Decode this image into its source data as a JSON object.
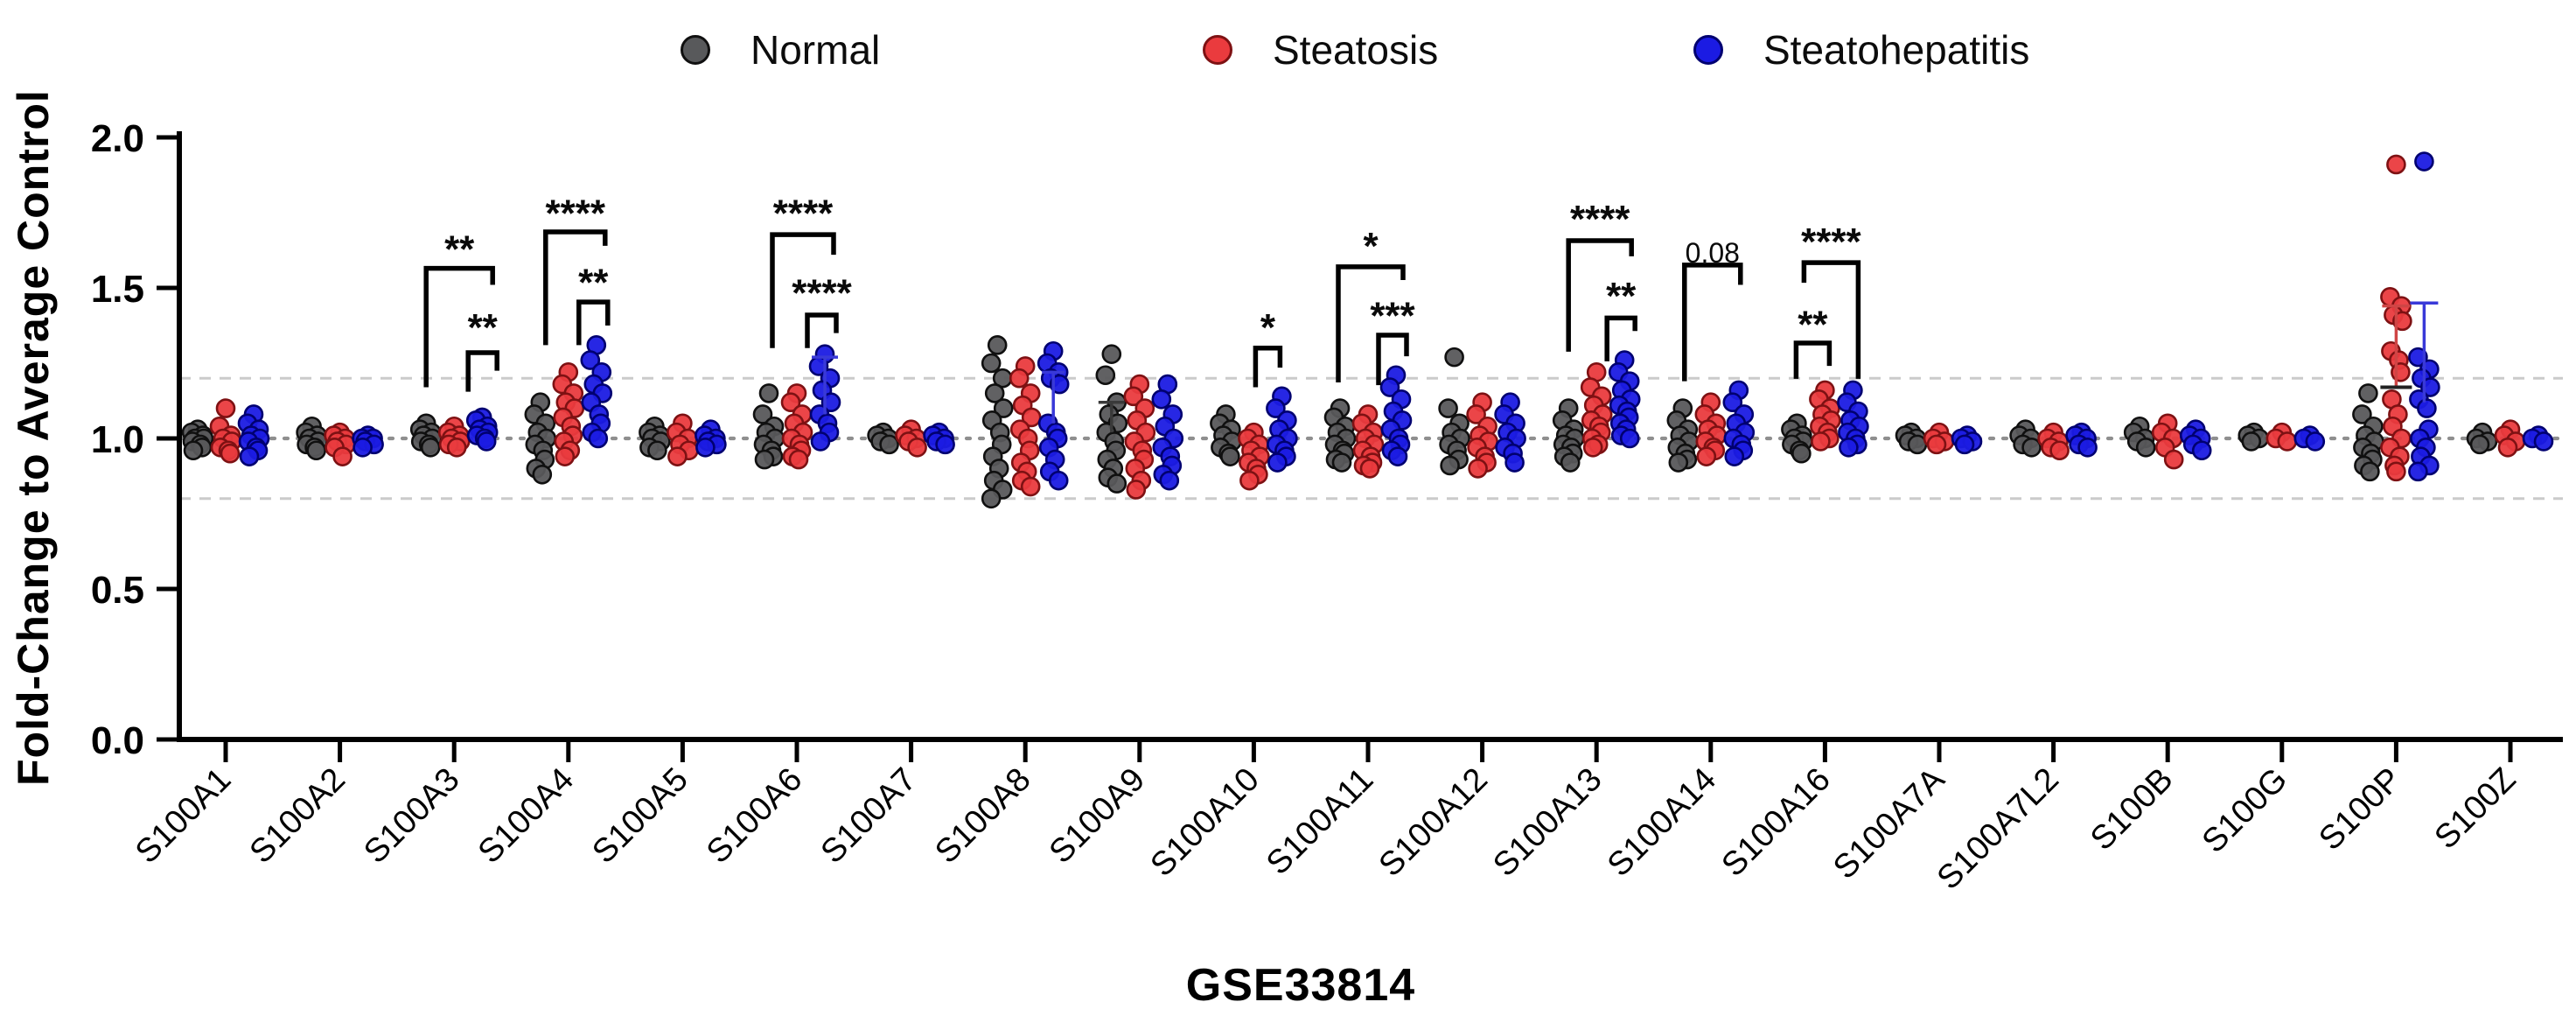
{
  "figure": {
    "kind": "scatter-dot-plot-figure",
    "background": "#ffffff"
  },
  "chart_data": {
    "type": "scatter",
    "title": "GSE33814",
    "xlabel": "GSE33814",
    "ylabel": "Fold-Change to Average Control",
    "ylim": [
      0.0,
      2.0
    ],
    "yticks": [
      "0.0",
      "0.5",
      "1.0",
      "1.5",
      "2.0"
    ],
    "legend_position": "top",
    "grid": "off",
    "reference_lines": [
      {
        "value": 1.2,
        "style": "dashed",
        "color": "#cbcbcb"
      },
      {
        "value": 1.0,
        "style": "dotted",
        "color": "#8f8f8f"
      },
      {
        "value": 0.8,
        "style": "dashed",
        "color": "#cbcbcb"
      }
    ],
    "categories": [
      "S100A1",
      "S100A2",
      "S100A3",
      "S100A4",
      "S100A5",
      "S100A6",
      "S100A7",
      "S100A8",
      "S100A9",
      "S100A10",
      "S100A11",
      "S100A12",
      "S100A13",
      "S100A14",
      "S100A16",
      "S100A7A",
      "S100A7L2",
      "S100B",
      "S100G",
      "S100P",
      "S100Z"
    ],
    "groups": [
      {
        "name": "Normal",
        "color": "#58595B",
        "edge_color": "#101010",
        "dx": -32,
        "values": [
          [
            1.03,
            1.02,
            1.01,
            1.0,
            1.0,
            0.99,
            0.98,
            0.97,
            0.96
          ],
          [
            1.04,
            1.02,
            1.01,
            1.0,
            0.99,
            0.98,
            0.97,
            0.96
          ],
          [
            1.05,
            1.03,
            1.02,
            1.01,
            1.0,
            0.99,
            0.98,
            0.97
          ],
          [
            1.12,
            1.08,
            1.05,
            1.02,
            1.0,
            0.98,
            0.96,
            0.93,
            0.9,
            0.88
          ],
          [
            1.04,
            1.02,
            1.01,
            1.0,
            0.99,
            0.97,
            0.96
          ],
          [
            1.15,
            1.08,
            1.04,
            1.02,
            1.0,
            0.98,
            0.96,
            0.94,
            0.93
          ],
          [
            1.02,
            1.01,
            1.0,
            0.99,
            0.98
          ],
          [
            1.31,
            1.25,
            1.2,
            1.15,
            1.1,
            1.06,
            1.02,
            0.98,
            0.94,
            0.9,
            0.86,
            0.83,
            0.8
          ],
          [
            1.28,
            1.21,
            1.12,
            1.08,
            1.05,
            1.02,
            0.99,
            0.96,
            0.93,
            0.9,
            0.87,
            0.85
          ],
          [
            1.08,
            1.05,
            1.03,
            1.01,
            0.99,
            0.97,
            0.95,
            0.94
          ],
          [
            1.1,
            1.07,
            1.04,
            1.02,
            1.0,
            0.98,
            0.96,
            0.95,
            0.93,
            0.92
          ],
          [
            1.27,
            1.1,
            1.05,
            1.02,
            1.0,
            0.98,
            0.96,
            0.93,
            0.91
          ],
          [
            1.1,
            1.06,
            1.03,
            1.01,
            1.0,
            0.98,
            0.97,
            0.95,
            0.94,
            0.92
          ],
          [
            1.1,
            1.06,
            1.03,
            1.01,
            0.99,
            0.97,
            0.95,
            0.93,
            0.92
          ],
          [
            1.05,
            1.03,
            1.01,
            1.0,
            0.99,
            0.98,
            0.96,
            0.95
          ],
          [
            1.02,
            1.01,
            1.0,
            0.99,
            0.98
          ],
          [
            1.03,
            1.01,
            1.0,
            0.98,
            0.97
          ],
          [
            1.04,
            1.02,
            1.0,
            0.99,
            0.97
          ],
          [
            1.02,
            1.01,
            1.0,
            0.99
          ],
          [
            1.15,
            1.08,
            1.04,
            1.01,
            0.99,
            0.97,
            0.95,
            0.93,
            0.91,
            0.89
          ],
          [
            1.02,
            1.0,
            0.99,
            0.98
          ]
        ]
      },
      {
        "name": "Steatosis",
        "color": "#EA3B3E",
        "edge_color": "#7E1113",
        "dx": 0,
        "values": [
          [
            1.1,
            1.04,
            1.01,
            1.0,
            0.99,
            0.97,
            0.96,
            0.95
          ],
          [
            1.02,
            1.01,
            1.0,
            0.99,
            0.98,
            0.97,
            0.94
          ],
          [
            1.04,
            1.02,
            1.01,
            1.0,
            0.99,
            0.98,
            0.97
          ],
          [
            1.22,
            1.18,
            1.15,
            1.12,
            1.1,
            1.07,
            1.04,
            1.01,
            0.99,
            0.96,
            0.94
          ],
          [
            1.05,
            1.02,
            1.0,
            0.98,
            0.96,
            0.94
          ],
          [
            1.15,
            1.12,
            1.08,
            1.05,
            1.02,
            1.0,
            0.98,
            0.96,
            0.94,
            0.93
          ],
          [
            1.03,
            1.01,
            1.0,
            0.99,
            0.97
          ],
          [
            1.24,
            1.2,
            1.15,
            1.11,
            1.07,
            1.03,
            1.0,
            0.96,
            0.92,
            0.89,
            0.86,
            0.84
          ],
          [
            1.18,
            1.14,
            1.1,
            1.06,
            1.02,
            0.99,
            0.96,
            0.93,
            0.9,
            0.86,
            0.83
          ],
          [
            1.02,
            1.0,
            0.98,
            0.96,
            0.94,
            0.92,
            0.9,
            0.88,
            0.86
          ],
          [
            1.08,
            1.05,
            1.02,
            1.0,
            0.98,
            0.96,
            0.94,
            0.92,
            0.91,
            0.9
          ],
          [
            1.12,
            1.08,
            1.04,
            1.01,
            0.99,
            0.97,
            0.94,
            0.92,
            0.9
          ],
          [
            1.22,
            1.17,
            1.14,
            1.11,
            1.08,
            1.06,
            1.04,
            1.02,
            1.0,
            0.98,
            0.97
          ],
          [
            1.12,
            1.08,
            1.05,
            1.03,
            1.01,
            0.99,
            0.97,
            0.96,
            0.94
          ],
          [
            1.16,
            1.13,
            1.1,
            1.08,
            1.06,
            1.04,
            1.02,
            1.0,
            0.99
          ],
          [
            1.02,
            1.0,
            0.99,
            0.98
          ],
          [
            1.02,
            1.0,
            0.99,
            0.97,
            0.96
          ],
          [
            1.05,
            1.02,
            1.0,
            0.97,
            0.93
          ],
          [
            1.02,
            1.0,
            0.99
          ],
          [
            1.91,
            1.47,
            1.44,
            1.41,
            1.39,
            1.29,
            1.26,
            1.22,
            1.13,
            1.08,
            1.04,
            1.0,
            0.97,
            0.94,
            0.91,
            0.89
          ],
          [
            1.03,
            1.01,
            0.99,
            0.97
          ]
        ]
      },
      {
        "name": "Steatohepatitis",
        "color": "#1B1BE3",
        "edge_color": "#000070",
        "dx": 32,
        "values": [
          [
            1.08,
            1.05,
            1.03,
            1.01,
            1.0,
            0.99,
            0.97,
            0.96,
            0.94
          ],
          [
            1.01,
            1.0,
            1.0,
            0.99,
            0.98,
            0.97
          ],
          [
            1.07,
            1.06,
            1.04,
            1.03,
            1.02,
            1.01,
            1.0,
            0.99
          ],
          [
            1.31,
            1.26,
            1.22,
            1.18,
            1.15,
            1.12,
            1.08,
            1.05,
            1.02,
            1.0
          ],
          [
            1.03,
            1.01,
            1.0,
            0.99,
            0.98,
            0.97
          ],
          [
            1.28,
            1.24,
            1.2,
            1.16,
            1.12,
            1.08,
            1.05,
            1.02,
            0.99
          ],
          [
            1.02,
            1.01,
            1.0,
            0.99,
            0.98
          ],
          [
            1.29,
            1.25,
            1.22,
            1.2,
            1.18,
            1.05,
            1.02,
            1.0,
            0.97,
            0.93,
            0.89,
            0.86
          ],
          [
            1.18,
            1.13,
            1.08,
            1.04,
            1.0,
            0.97,
            0.94,
            0.91,
            0.88,
            0.86
          ],
          [
            1.14,
            1.1,
            1.06,
            1.03,
            1.0,
            0.98,
            0.96,
            0.94,
            0.92
          ],
          [
            1.21,
            1.17,
            1.13,
            1.09,
            1.06,
            1.03,
            1.0,
            0.98,
            0.96,
            0.94
          ],
          [
            1.12,
            1.08,
            1.05,
            1.02,
            1.0,
            0.97,
            0.95,
            0.92
          ],
          [
            1.26,
            1.22,
            1.19,
            1.16,
            1.13,
            1.11,
            1.09,
            1.07,
            1.05,
            1.03,
            1.01,
            1.0
          ],
          [
            1.16,
            1.12,
            1.08,
            1.05,
            1.02,
            1.0,
            0.98,
            0.96,
            0.94
          ],
          [
            1.16,
            1.12,
            1.09,
            1.06,
            1.04,
            1.02,
            1.0,
            0.98,
            0.97
          ],
          [
            1.01,
            1.0,
            0.99,
            0.98
          ],
          [
            1.02,
            1.01,
            1.0,
            0.98,
            0.97
          ],
          [
            1.03,
            1.01,
            1.0,
            0.98,
            0.96
          ],
          [
            1.01,
            1.0,
            0.99
          ],
          [
            1.92,
            1.27,
            1.23,
            1.2,
            1.17,
            1.13,
            1.1,
            1.03,
            1.0,
            0.97,
            0.94,
            0.91,
            0.89
          ],
          [
            1.01,
            1.0,
            0.99
          ]
        ]
      }
    ],
    "significance_brackets": [
      {
        "category": "S100A3",
        "comparison": "Normal vs Steatohepatitis",
        "label": "**",
        "dx_left": -32,
        "dx_right": 44,
        "v_top": 1.565,
        "v_left_end": 1.17,
        "v_right_end": 1.51,
        "v_label": 1.69
      },
      {
        "category": "S100A3",
        "comparison": "Steatosis vs Steatohepatitis",
        "label": "**",
        "dx_left": 16,
        "dx_right": 49,
        "v_top": 1.285,
        "v_left_end": 1.155,
        "v_right_end": 1.225,
        "v_label": 1.43
      },
      {
        "category": "S100A4",
        "comparison": "Normal vs Steatohepatitis",
        "label": "****",
        "dx_left": -26,
        "dx_right": 42,
        "v_top": 1.686,
        "v_left_end": 1.31,
        "v_right_end": 1.64,
        "v_label": 1.81
      },
      {
        "category": "S100A4",
        "comparison": "Steatosis vs Steatohepatitis",
        "label": "**",
        "dx_left": 12,
        "dx_right": 45,
        "v_top": 1.453,
        "v_left_end": 1.31,
        "v_right_end": 1.375,
        "v_label": 1.58
      },
      {
        "category": "S100A6",
        "comparison": "Normal vs Steatohepatitis",
        "label": "****",
        "dx_left": -28,
        "dx_right": 42,
        "v_top": 1.677,
        "v_left_end": 1.3,
        "v_right_end": 1.61,
        "v_label": 1.81
      },
      {
        "category": "S100A6",
        "comparison": "Steatosis vs Steatohepatitis",
        "label": "****",
        "dx_left": 12,
        "dx_right": 45,
        "v_top": 1.41,
        "v_left_end": 1.3,
        "v_right_end": 1.35,
        "v_label": 1.545
      },
      {
        "category": "S100A10",
        "comparison": "Steatosis vs Steatohepatitis",
        "label": "*",
        "dx_left": 2,
        "dx_right": 30,
        "v_top": 1.3,
        "v_left_end": 1.17,
        "v_right_end": 1.235,
        "v_label": 1.43
      },
      {
        "category": "S100A11",
        "comparison": "Normal vs Steatohepatitis",
        "label": "*",
        "dx_left": -34,
        "dx_right": 40,
        "v_top": 1.57,
        "v_left_end": 1.186,
        "v_right_end": 1.526,
        "v_label": 1.7
      },
      {
        "category": "S100A11",
        "comparison": "Steatosis vs Steatohepatitis",
        "label": "***",
        "dx_left": 12,
        "dx_right": 44,
        "v_top": 1.343,
        "v_left_end": 1.177,
        "v_right_end": 1.273,
        "v_label": 1.47
      },
      {
        "category": "S100A13",
        "comparison": "Normal vs Steatohepatitis",
        "label": "****",
        "dx_left": -32,
        "dx_right": 40,
        "v_top": 1.657,
        "v_left_end": 1.288,
        "v_right_end": 1.605,
        "v_label": 1.79
      },
      {
        "category": "S100A13",
        "comparison": "Steatosis vs Steatohepatitis",
        "label": "**",
        "dx_left": 12,
        "dx_right": 44,
        "v_top": 1.4,
        "v_left_end": 1.256,
        "v_right_end": 1.357,
        "v_label": 1.535
      },
      {
        "category": "S100A14",
        "comparison": "Normal vs Steatohepatitis",
        "label": "0.08",
        "dx_left": -30,
        "dx_right": 34,
        "v_top": 1.576,
        "v_left_end": 1.19,
        "v_right_end": 1.51,
        "v_label": 1.66
      },
      {
        "category": "S100A16",
        "comparison": "Normal vs Steatohepatitis",
        "label": "****",
        "dx_left": -24,
        "dx_right": 38,
        "v_top": 1.584,
        "v_left_end": 1.517,
        "v_right_end": 1.198,
        "v_label": 1.715
      },
      {
        "category": "S100A16",
        "comparison": "Normal vs Steatosis",
        "label": "**",
        "dx_left": -33,
        "dx_right": 5,
        "v_top": 1.317,
        "v_left_end": 1.198,
        "v_right_end": 1.241,
        "v_label": 1.44
      }
    ],
    "error_bars": [
      {
        "category": "S100A6",
        "group": "Steatohepatitis",
        "dx": 32,
        "v_from": 1.08,
        "v_to": 1.27,
        "cap_half": 15,
        "color": "#3939d8",
        "mean_dash": false
      },
      {
        "category": "S100A8",
        "group": "Steatohepatitis",
        "dx": 32,
        "v_from": 1.05,
        "v_to": 1.22,
        "cap_half": 13,
        "color": "#3939d8",
        "mean_dash": false
      },
      {
        "category": "S100A9",
        "group": "Normal",
        "dx": -32,
        "v_from": 1.02,
        "v_to": 1.12,
        "cap_half": 15,
        "color": "#3a3a3a",
        "mean_dash": false
      },
      {
        "category": "S100P",
        "group": "Steatosis",
        "dx": 0,
        "v_from": 1.17,
        "v_to": 1.44,
        "cap_half": 16,
        "color": "#cf4545",
        "mean_dash": true
      },
      {
        "category": "S100P",
        "group": "Steatohepatitis",
        "dx": 32,
        "v_from": 1.12,
        "v_to": 1.45,
        "cap_half": 16,
        "color": "#3939d8",
        "mean_dash": false
      }
    ]
  }
}
